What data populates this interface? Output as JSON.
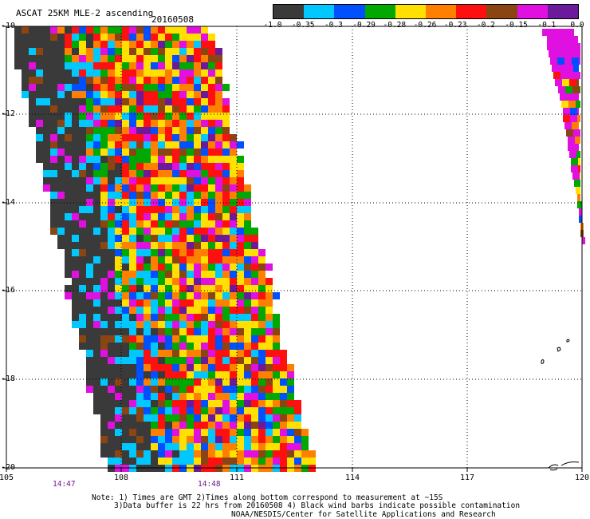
{
  "header": {
    "title": "ASCAT 25KM MLE-2 ascending",
    "date": "20160508"
  },
  "legend": {
    "colors": [
      "#3a3a3a",
      "#00c8ff",
      "#0050ff",
      "#00a800",
      "#ffe000",
      "#ff8000",
      "#ff1010",
      "#8b4513",
      "#e010e0",
      "#6a1a9a"
    ],
    "labels": [
      "-1.0",
      "-0.35",
      "-0.3",
      "-0.29",
      "-0.28",
      "-0.26",
      "-0.23",
      "-0.2",
      "-0.15",
      "-0.1",
      "0.0"
    ]
  },
  "map": {
    "lon_range": [
      105,
      120
    ],
    "lat_range": [
      -20,
      -10
    ],
    "x_ticks": [
      "105",
      "108",
      "111",
      "114",
      "117",
      "120"
    ],
    "y_ticks": [
      "-10",
      "-12",
      "-14",
      "-16",
      "-18",
      "-20"
    ],
    "time_labels": [
      "14:47",
      "14:48"
    ]
  },
  "footer": {
    "line1": "Note: 1) Times are GMT 2)Times along bottom correspond to measurement at ~15S",
    "line2": "3)Data buffer is 22 hrs from 20160508 4) Black wind barbs indicate possible contamination",
    "line3": "NOAA/NESDIS/Center for Satellite Applications and Research"
  }
}
